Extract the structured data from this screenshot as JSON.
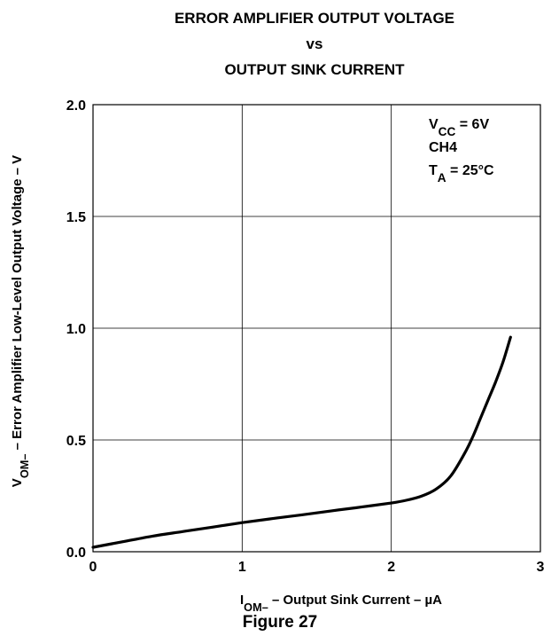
{
  "chart_data": {
    "type": "line",
    "title_lines": [
      "ERROR AMPLIFIER OUTPUT VOLTAGE",
      "vs",
      "OUTPUT SINK CURRENT"
    ],
    "ylabel": {
      "main": "V",
      "sub": "OM–",
      "rest": " – Error Amplifier Low-Level Output Voltage – V"
    },
    "xlabel": {
      "main": "I",
      "sub": "OM–",
      "rest": " – Output Sink Current – µA"
    },
    "figure_caption": "Figure 27",
    "xlim": [
      0,
      3
    ],
    "ylim": [
      0,
      2
    ],
    "x_ticks": [
      "0",
      "1",
      "2",
      "3"
    ],
    "y_ticks": [
      "0.0",
      "0.5",
      "1.0",
      "1.5",
      "2.0"
    ],
    "grid": true,
    "conditions": [
      {
        "main": "V",
        "sub": "CC",
        "rest": " = 6V"
      },
      {
        "main": "CH4",
        "sub": "",
        "rest": ""
      },
      {
        "main": "T",
        "sub": "A",
        "rest": " = 25°C"
      }
    ],
    "series": [
      {
        "color": "#000000",
        "x": [
          0,
          0.2,
          0.4,
          0.6,
          0.8,
          1.0,
          1.2,
          1.4,
          1.6,
          1.8,
          2.0,
          2.1,
          2.2,
          2.3,
          2.4,
          2.5,
          2.55,
          2.6,
          2.65,
          2.7,
          2.75,
          2.8
        ],
        "y": [
          0.02,
          0.045,
          0.07,
          0.09,
          0.11,
          0.13,
          0.148,
          0.165,
          0.183,
          0.2,
          0.218,
          0.23,
          0.248,
          0.28,
          0.34,
          0.45,
          0.52,
          0.6,
          0.68,
          0.76,
          0.85,
          0.96
        ]
      }
    ]
  }
}
